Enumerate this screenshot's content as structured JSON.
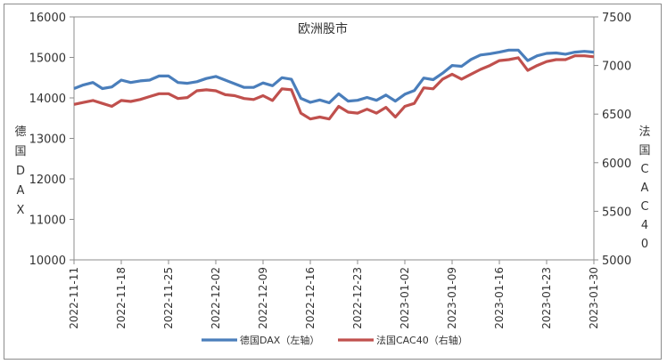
{
  "chart_data": {
    "type": "line",
    "title": "欧洲股市",
    "y_left_label": "德国DAX",
    "y_right_label": "法国CAC40",
    "y_left_lim": [
      10000,
      16000
    ],
    "y_left_ticks": [
      10000,
      11000,
      12000,
      13000,
      14000,
      15000,
      16000
    ],
    "y_right_lim": [
      5000,
      7500
    ],
    "y_right_ticks": [
      5000,
      5500,
      6000,
      6500,
      7000,
      7500
    ],
    "x_tick_labels": [
      "2022-11-11",
      "2022-11-18",
      "2022-11-25",
      "2022-12-02",
      "2022-12-09",
      "2022-12-16",
      "2022-12-23",
      "2023-01-02",
      "2023-01-09",
      "2023-01-16",
      "2023-01-23",
      "2023-01-30"
    ],
    "x": [
      "2022-11-11",
      "2022-11-14",
      "2022-11-15",
      "2022-11-16",
      "2022-11-17",
      "2022-11-18",
      "2022-11-21",
      "2022-11-22",
      "2022-11-23",
      "2022-11-24",
      "2022-11-25",
      "2022-11-28",
      "2022-11-29",
      "2022-11-30",
      "2022-12-01",
      "2022-12-02",
      "2022-12-05",
      "2022-12-06",
      "2022-12-07",
      "2022-12-08",
      "2022-12-09",
      "2022-12-12",
      "2022-12-13",
      "2022-12-14",
      "2022-12-15",
      "2022-12-16",
      "2022-12-19",
      "2022-12-20",
      "2022-12-21",
      "2022-12-22",
      "2022-12-23",
      "2022-12-27",
      "2022-12-28",
      "2022-12-29",
      "2022-12-30",
      "2023-01-02",
      "2023-01-03",
      "2023-01-04",
      "2023-01-05",
      "2023-01-06",
      "2023-01-09",
      "2023-01-10",
      "2023-01-11",
      "2023-01-12",
      "2023-01-13",
      "2023-01-16",
      "2023-01-17",
      "2023-01-18",
      "2023-01-19",
      "2023-01-20",
      "2023-01-23",
      "2023-01-24",
      "2023-01-25",
      "2023-01-26",
      "2023-01-27",
      "2023-01-30"
    ],
    "series": [
      {
        "name": "德国DAX（左轴）",
        "axis": "left",
        "color": "#4a7ebb",
        "values": [
          14230,
          14320,
          14380,
          14230,
          14270,
          14440,
          14380,
          14420,
          14440,
          14540,
          14540,
          14380,
          14360,
          14400,
          14480,
          14530,
          14440,
          14350,
          14260,
          14260,
          14370,
          14300,
          14500,
          14460,
          13990,
          13890,
          13950,
          13880,
          14100,
          13920,
          13940,
          14010,
          13940,
          14070,
          13920,
          14090,
          14180,
          14490,
          14450,
          14610,
          14800,
          14780,
          14950,
          15060,
          15090,
          15130,
          15180,
          15180,
          14920,
          15040,
          15100,
          15110,
          15080,
          15130,
          15150,
          15130
        ]
      },
      {
        "name": "法国CAC40（右轴）",
        "axis": "right",
        "color": "#c0504d",
        "values": [
          6600,
          6620,
          6640,
          6610,
          6580,
          6640,
          6630,
          6650,
          6680,
          6710,
          6710,
          6660,
          6670,
          6740,
          6750,
          6740,
          6700,
          6690,
          6660,
          6650,
          6690,
          6640,
          6760,
          6750,
          6510,
          6450,
          6470,
          6450,
          6580,
          6520,
          6510,
          6550,
          6510,
          6570,
          6470,
          6580,
          6610,
          6770,
          6760,
          6860,
          6910,
          6860,
          6910,
          6960,
          7000,
          7050,
          7060,
          7080,
          6950,
          7000,
          7040,
          7060,
          7060,
          7100,
          7100,
          7090
        ]
      }
    ]
  }
}
